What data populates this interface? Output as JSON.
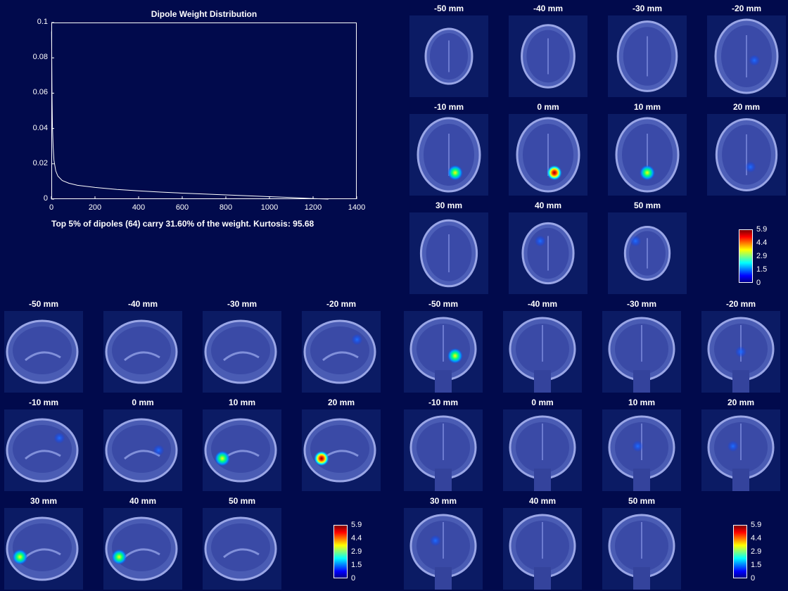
{
  "chart_data": {
    "type": "line",
    "title": "Dipole Weight Distribution",
    "xlim": [
      0,
      1400
    ],
    "ylim": [
      0,
      0.1
    ],
    "x_ticks": [
      "0",
      "200",
      "400",
      "600",
      "800",
      "1000",
      "1200",
      "1400"
    ],
    "y_ticks": [
      "0",
      "0.02",
      "0.04",
      "0.06",
      "0.08",
      "0.1"
    ],
    "series": [
      {
        "name": "weight",
        "x": [
          1,
          2,
          3,
          5,
          8,
          12,
          20,
          30,
          50,
          80,
          120,
          200,
          300,
          400,
          500,
          600,
          700,
          800,
          900,
          1000,
          1100,
          1150,
          1200,
          1250,
          1270
        ],
        "y": [
          0.095,
          0.078,
          0.06,
          0.042,
          0.03,
          0.022,
          0.016,
          0.013,
          0.0105,
          0.009,
          0.0078,
          0.0066,
          0.0055,
          0.0047,
          0.004,
          0.0034,
          0.0029,
          0.0024,
          0.0019,
          0.0014,
          0.0009,
          0.0006,
          0.0003,
          0.0001,
          0.0
        ]
      }
    ]
  },
  "summary": "Top 5% of dipoles (64) carry 31.60% of the weight. Kurtosis: 95.68",
  "slice_labels": [
    "-50 mm",
    "-40 mm",
    "-30 mm",
    "-20 mm",
    "-10 mm",
    "0 mm",
    "10 mm",
    "20 mm",
    "30 mm",
    "40 mm",
    "50 mm"
  ],
  "colorbar_ticks": [
    "5.9",
    "4.4",
    "2.9",
    "1.5",
    "0"
  ],
  "colors": {
    "background": "#010a4c",
    "line": "#ffffff"
  }
}
